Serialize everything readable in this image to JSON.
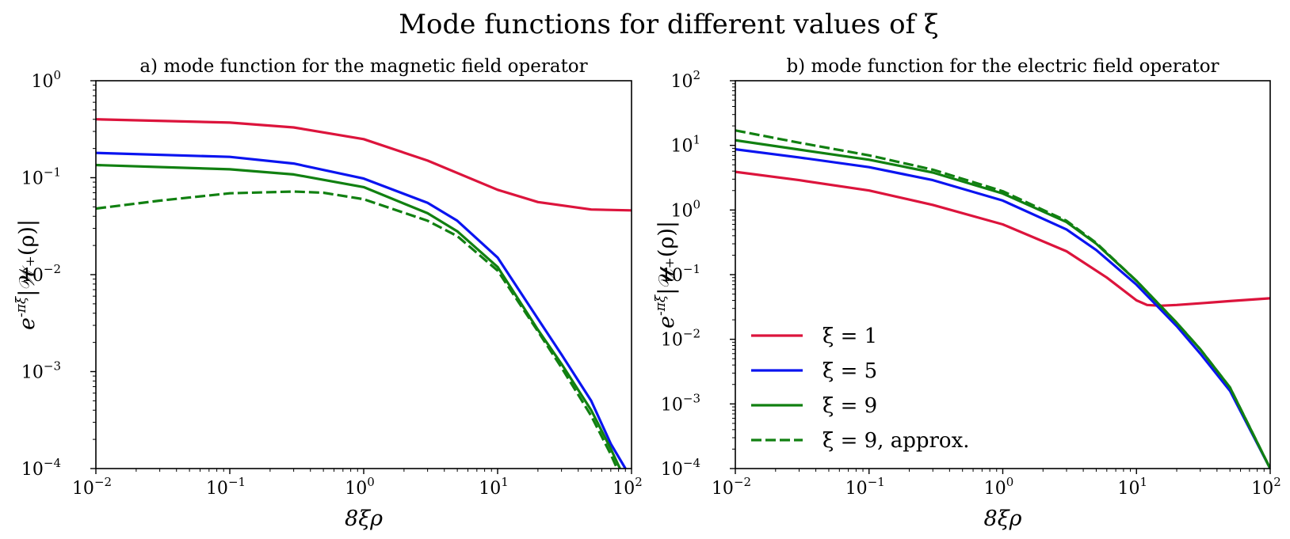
{
  "figure": {
    "title": "Mode functions for different values of ξ"
  },
  "colors": {
    "xi1": "#dc143c",
    "xi5": "#0a14f0",
    "xi9": "#118011",
    "xi9_approx": "#118011",
    "axis": "#000000"
  },
  "chart_data": [
    {
      "type": "line",
      "title": "a) mode function for the magnetic field operator",
      "xlabel": "8ξρ",
      "ylabel": "e^{-πξ}|𝒲₊(ρ)|",
      "xscale": "log",
      "yscale": "log",
      "xlim": [
        0.01,
        100
      ],
      "ylim": [
        0.0001,
        1
      ],
      "xticks": [
        {
          "base": "10",
          "exp": "−2"
        },
        {
          "base": "10",
          "exp": "−1"
        },
        {
          "base": "10",
          "exp": "0"
        },
        {
          "base": "10",
          "exp": "1"
        },
        {
          "base": "10",
          "exp": "2"
        }
      ],
      "yticks": [
        {
          "base": "10",
          "exp": "−4"
        },
        {
          "base": "10",
          "exp": "−3"
        },
        {
          "base": "10",
          "exp": "−2"
        },
        {
          "base": "10",
          "exp": "−1"
        },
        {
          "base": "10",
          "exp": "0"
        }
      ],
      "series": [
        {
          "name": "ξ = 1",
          "key": "xi1",
          "dashed": false,
          "x": [
            0.01,
            0.1,
            0.3,
            1,
            3,
            10,
            20,
            50,
            100
          ],
          "y": [
            0.4,
            0.37,
            0.33,
            0.25,
            0.15,
            0.075,
            0.056,
            0.047,
            0.046
          ]
        },
        {
          "name": "ξ = 5",
          "key": "xi5",
          "dashed": false,
          "x": [
            0.01,
            0.1,
            0.3,
            1,
            3,
            5,
            10,
            20,
            30,
            50,
            70,
            90
          ],
          "y": [
            0.18,
            0.164,
            0.14,
            0.098,
            0.055,
            0.036,
            0.015,
            0.0035,
            0.0015,
            0.0005,
            0.00018,
            0.0001
          ]
        },
        {
          "name": "ξ = 9",
          "key": "xi9",
          "dashed": false,
          "x": [
            0.01,
            0.1,
            0.3,
            1,
            3,
            5,
            10,
            20,
            30,
            50,
            70,
            82
          ],
          "y": [
            0.135,
            0.122,
            0.108,
            0.08,
            0.043,
            0.028,
            0.012,
            0.0027,
            0.0012,
            0.0004,
            0.00016,
            0.0001
          ]
        },
        {
          "name": "ξ = 9, approx.",
          "key": "xi9_approx",
          "dashed": true,
          "x": [
            0.01,
            0.03,
            0.1,
            0.3,
            0.5,
            1,
            3,
            5,
            10,
            20,
            30,
            50,
            70,
            78
          ],
          "y": [
            0.048,
            0.058,
            0.069,
            0.072,
            0.07,
            0.06,
            0.036,
            0.025,
            0.011,
            0.0026,
            0.0011,
            0.00035,
            0.00014,
            0.0001
          ]
        }
      ]
    },
    {
      "type": "line",
      "title": "b) mode function for the electric field operator",
      "xlabel": "8ξρ",
      "ylabel": "e^{-πξ}|𝒰₊(ρ)|",
      "xscale": "log",
      "yscale": "log",
      "xlim": [
        0.01,
        100
      ],
      "ylim": [
        0.0001,
        100
      ],
      "xticks": [
        {
          "base": "10",
          "exp": "−2"
        },
        {
          "base": "10",
          "exp": "−1"
        },
        {
          "base": "10",
          "exp": "0"
        },
        {
          "base": "10",
          "exp": "1"
        },
        {
          "base": "10",
          "exp": "2"
        }
      ],
      "yticks": [
        {
          "base": "10",
          "exp": "−4"
        },
        {
          "base": "10",
          "exp": "−3"
        },
        {
          "base": "10",
          "exp": "−2"
        },
        {
          "base": "10",
          "exp": "−1"
        },
        {
          "base": "10",
          "exp": "0"
        },
        {
          "base": "10",
          "exp": "1"
        },
        {
          "base": "10",
          "exp": "2"
        }
      ],
      "legend_position": "lower-left",
      "series": [
        {
          "name": "ξ = 1",
          "key": "xi1",
          "dashed": false,
          "x": [
            0.01,
            0.03,
            0.1,
            0.3,
            1,
            3,
            6,
            10,
            12,
            15,
            20,
            30,
            50,
            100
          ],
          "y": [
            3.9,
            2.9,
            2.0,
            1.2,
            0.6,
            0.23,
            0.09,
            0.04,
            0.034,
            0.033,
            0.034,
            0.036,
            0.039,
            0.043
          ]
        },
        {
          "name": "ξ = 5",
          "key": "xi5",
          "dashed": false,
          "x": [
            0.01,
            0.03,
            0.1,
            0.3,
            1,
            3,
            5,
            10,
            20,
            30,
            50,
            100
          ],
          "y": [
            8.7,
            6.5,
            4.6,
            2.9,
            1.4,
            0.5,
            0.24,
            0.07,
            0.016,
            0.006,
            0.0016,
            0.0001
          ]
        },
        {
          "name": "ξ = 9",
          "key": "xi9",
          "dashed": false,
          "x": [
            0.01,
            0.03,
            0.1,
            0.3,
            1,
            3,
            5,
            10,
            20,
            30,
            50,
            100
          ],
          "y": [
            12,
            8.6,
            6.0,
            3.8,
            1.8,
            0.65,
            0.3,
            0.08,
            0.018,
            0.007,
            0.0018,
            0.0001
          ]
        },
        {
          "name": "ξ = 9, approx.",
          "key": "xi9_approx",
          "dashed": true,
          "x": [
            0.01,
            0.03,
            0.1,
            0.3,
            1,
            3,
            5,
            10,
            20,
            30,
            50,
            100
          ],
          "y": [
            17,
            11,
            7.0,
            4.2,
            1.95,
            0.68,
            0.31,
            0.08,
            0.018,
            0.007,
            0.0018,
            0.0001
          ]
        }
      ]
    }
  ]
}
